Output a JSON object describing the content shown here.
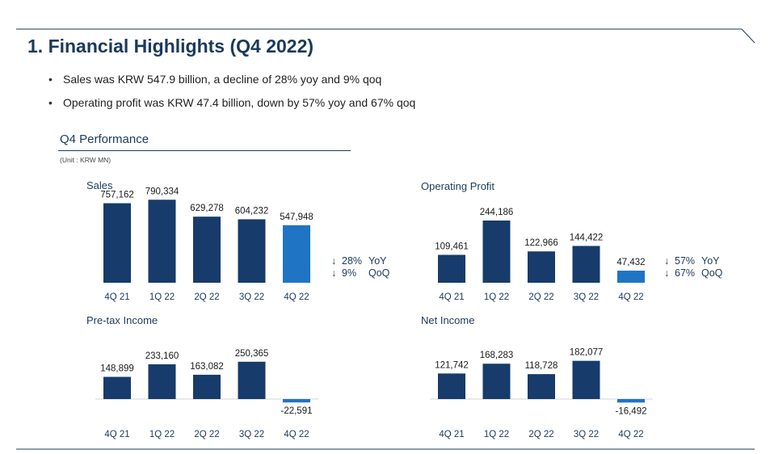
{
  "page": {
    "title": "1. Financial Highlights (Q4 2022)",
    "bullets": [
      "Sales was KRW 547.9 billion, a decline of 28% yoy and 9% qoq",
      "Operating profit was KRW 47.4 billion, down by 57% yoy and 67% qoq"
    ],
    "section_title": "Q4 Performance",
    "unit": "(Unit : KRW MN)"
  },
  "colors": {
    "dark_bar": "#173b6a",
    "highlight_bar": "#1f74c4",
    "text": "#1b3a5c"
  },
  "chart_data": [
    {
      "type": "bar",
      "title": "Sales",
      "categories": [
        "4Q 21",
        "1Q 22",
        "2Q 22",
        "3Q 22",
        "4Q 22"
      ],
      "values": [
        757162,
        790334,
        629278,
        604232,
        547948
      ],
      "labels": [
        "757,162",
        "790,334",
        "629,278",
        "604,232",
        "547,948"
      ],
      "highlight_index": 4,
      "change": {
        "yoy": "28%",
        "yoy_label": "YoY",
        "qoq": "9%",
        "qoq_label": "QoQ",
        "arrow": "↓"
      }
    },
    {
      "type": "bar",
      "title": "Operating Profit",
      "categories": [
        "4Q 21",
        "1Q 22",
        "2Q 22",
        "3Q 22",
        "4Q 22"
      ],
      "values": [
        109461,
        244186,
        122966,
        144422,
        47432
      ],
      "labels": [
        "109,461",
        "244,186",
        "122,966",
        "144,422",
        "47,432"
      ],
      "highlight_index": 4,
      "change": {
        "yoy": "57%",
        "yoy_label": "YoY",
        "qoq": "67%",
        "qoq_label": "QoQ",
        "arrow": "↓"
      }
    },
    {
      "type": "bar",
      "title": "Pre-tax Income",
      "categories": [
        "4Q 21",
        "1Q 22",
        "2Q 22",
        "3Q 22",
        "4Q 22"
      ],
      "values": [
        148899,
        233160,
        163082,
        250365,
        -22591
      ],
      "labels": [
        "148,899",
        "233,160",
        "163,082",
        "250,365",
        "-22,591"
      ],
      "highlight_index": 4
    },
    {
      "type": "bar",
      "title": "Net Income",
      "categories": [
        "4Q 21",
        "1Q 22",
        "2Q 22",
        "3Q 22",
        "4Q 22"
      ],
      "values": [
        121742,
        168283,
        118728,
        182077,
        -16492
      ],
      "labels": [
        "121,742",
        "168,283",
        "118,728",
        "182,077",
        "-16,492"
      ],
      "highlight_index": 4
    }
  ]
}
